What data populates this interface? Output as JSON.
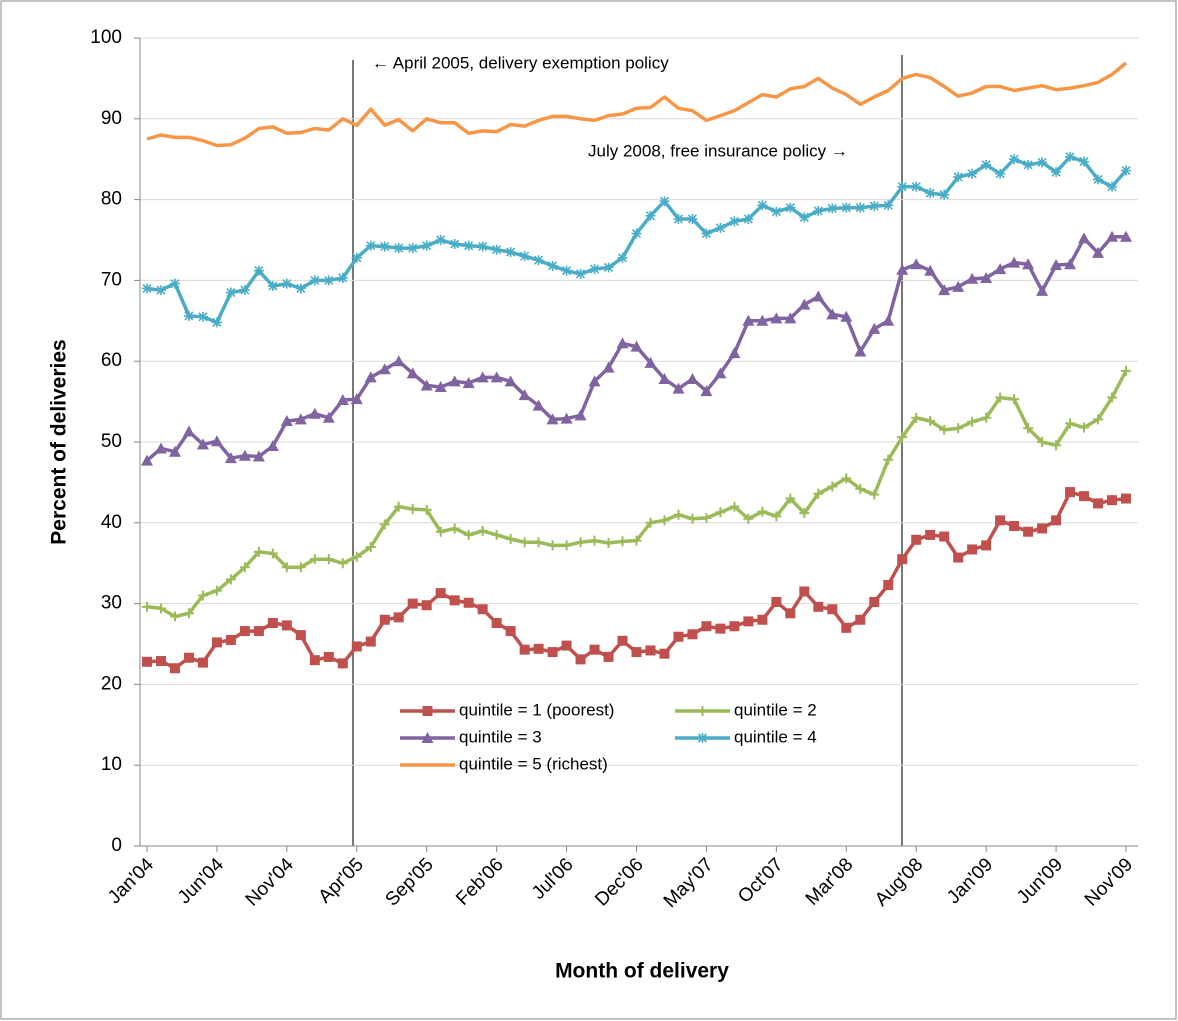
{
  "chart_data": {
    "type": "line",
    "xlabel": "Month of delivery",
    "ylabel": "Percent of deliveries",
    "annotations": [
      "← April 2005, delivery exemption policy",
      "July 2008, free insurance policy →"
    ],
    "categories": [
      "Jan'04",
      null,
      null,
      null,
      null,
      "Jun'04",
      null,
      null,
      null,
      null,
      "Nov'04",
      null,
      null,
      null,
      null,
      "Apr'05",
      null,
      null,
      null,
      null,
      "Sep'05",
      null,
      null,
      null,
      null,
      "Feb'06",
      null,
      null,
      null,
      null,
      "Jul'06",
      null,
      null,
      null,
      null,
      "Dec'06",
      null,
      null,
      null,
      null,
      "May'07",
      null,
      null,
      null,
      null,
      "Oct'07",
      null,
      null,
      null,
      null,
      "Mar'08",
      null,
      null,
      null,
      null,
      "Aug'08",
      null,
      null,
      null,
      null,
      "Jan'09",
      null,
      null,
      null,
      null,
      "Jun'09",
      null,
      null,
      null,
      null,
      "Nov'09"
    ],
    "ylim": [
      0,
      100
    ],
    "yticks": [
      0,
      10,
      20,
      30,
      40,
      50,
      60,
      70,
      80,
      90,
      100
    ],
    "grid": true,
    "series": [
      {
        "name": "quintile = 1 (poorest)",
        "color": "#c0504d",
        "marker": "square",
        "values": [
          22.8,
          22.9,
          22,
          23.3,
          22.7,
          25.2,
          25.5,
          26.6,
          26.6,
          27.6,
          27.3,
          26.1,
          23,
          23.4,
          22.6,
          24.7,
          25.3,
          28,
          28.3,
          30,
          29.8,
          31.3,
          30.4,
          30.1,
          29.3,
          27.6,
          26.6,
          24.3,
          24.4,
          24,
          24.8,
          23.1,
          24.3,
          23.4,
          25.4,
          24,
          24.2,
          23.8,
          25.9,
          26.2,
          27.2,
          26.9,
          27.2,
          27.8,
          28,
          30.2,
          28.8,
          31.5,
          29.6,
          29.3,
          27,
          28,
          30.2,
          32.3,
          35.5,
          37.9,
          38.5,
          38.3,
          35.7,
          36.7,
          37.2,
          40.3,
          39.6,
          38.9,
          39.3,
          40.3,
          43.8,
          43.3,
          42.4,
          42.8,
          43
        ]
      },
      {
        "name": "quintile = 2",
        "color": "#9bbb59",
        "marker": "plus",
        "values": [
          29.6,
          29.4,
          28.4,
          28.8,
          31,
          31.6,
          33,
          34.5,
          36.4,
          36.2,
          34.5,
          34.5,
          35.5,
          35.5,
          35,
          35.8,
          37,
          39.8,
          42,
          41.7,
          41.6,
          38.9,
          39.3,
          38.5,
          39,
          38.5,
          38,
          37.6,
          37.6,
          37.2,
          37.2,
          37.6,
          37.8,
          37.5,
          37.7,
          37.8,
          40,
          40.3,
          41,
          40.5,
          40.6,
          41.3,
          42,
          40.5,
          41.4,
          40.8,
          43,
          41.2,
          43.6,
          44.5,
          45.5,
          44.2,
          43.5,
          47.8,
          50.6,
          53,
          52.6,
          51.5,
          51.7,
          52.5,
          53,
          55.5,
          55.3,
          51.7,
          50,
          49.6,
          52.3,
          51.8,
          52.8,
          55.5,
          58.8
        ]
      },
      {
        "name": "quintile = 3",
        "color": "#8064a2",
        "marker": "triangle",
        "values": [
          47.7,
          49.2,
          48.8,
          51.3,
          49.7,
          50.1,
          48,
          48.3,
          48.2,
          49.5,
          52.6,
          52.8,
          53.5,
          53,
          55.2,
          55.3,
          58,
          59,
          60,
          58.5,
          57,
          56.8,
          57.5,
          57.3,
          58,
          58,
          57.5,
          55.8,
          54.5,
          52.8,
          52.9,
          53.3,
          57.5,
          59.2,
          62.2,
          61.8,
          59.8,
          57.8,
          56.6,
          57.8,
          56.3,
          58.5,
          61,
          65,
          65,
          65.3,
          65.3,
          67,
          68,
          65.8,
          65.5,
          61.2,
          64,
          65,
          71.3,
          72,
          71.2,
          68.8,
          69.2,
          70.2,
          70.3,
          71.4,
          72.2,
          72,
          68.7,
          71.9,
          72,
          75.2,
          73.4,
          75.4,
          75.4
        ]
      },
      {
        "name": "quintile = 4",
        "color": "#4bacc6",
        "marker": "star",
        "values": [
          69,
          68.8,
          69.6,
          65.6,
          65.5,
          64.8,
          68.5,
          68.8,
          71.2,
          69.3,
          69.6,
          69,
          70,
          70,
          70.3,
          72.8,
          74.3,
          74.2,
          74,
          74,
          74.3,
          75,
          74.5,
          74.3,
          74.2,
          73.8,
          73.5,
          73,
          72.5,
          71.8,
          71.2,
          70.8,
          71.4,
          71.6,
          72.8,
          75.8,
          78,
          79.8,
          77.6,
          77.6,
          75.8,
          76.5,
          77.3,
          77.6,
          79.3,
          78.5,
          79,
          77.8,
          78.6,
          78.9,
          79,
          79,
          79.2,
          79.3,
          81.6,
          81.6,
          80.8,
          80.6,
          82.8,
          83.2,
          84.3,
          83.2,
          85,
          84.3,
          84.6,
          83.4,
          85.3,
          84.7,
          82.5,
          81.6,
          83.6
        ]
      },
      {
        "name": "quintile = 5 (richest)",
        "color": "#f79646",
        "marker": "none",
        "values": [
          87.5,
          88,
          87.7,
          87.7,
          87.3,
          86.7,
          86.8,
          87.6,
          88.8,
          89,
          88.2,
          88.3,
          88.8,
          88.6,
          90,
          89.2,
          91.2,
          89.2,
          89.9,
          88.5,
          90,
          89.5,
          89.5,
          88.2,
          88.5,
          88.4,
          89.3,
          89.1,
          89.8,
          90.3,
          90.3,
          90,
          89.8,
          90.4,
          90.6,
          91.3,
          91.4,
          92.7,
          91.3,
          91,
          89.8,
          90.4,
          91,
          92,
          93,
          92.7,
          93.7,
          94,
          95,
          93.8,
          93,
          91.8,
          92.7,
          93.5,
          95,
          95.5,
          95.1,
          94,
          92.8,
          93.2,
          94,
          94,
          93.5,
          93.8,
          94.1,
          93.6,
          93.8,
          94.1,
          94.5,
          95.5,
          96.9
        ]
      }
    ]
  }
}
